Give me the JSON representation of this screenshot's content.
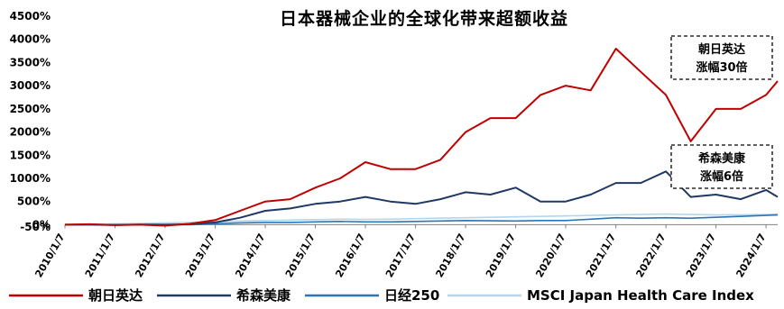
{
  "chart_data": {
    "type": "line",
    "title": "日本器械企业的全球化带来超额收益",
    "xlabel": "",
    "ylabel": "",
    "ylim": [
      -50,
      4500
    ],
    "y_ticks": [
      "-50%",
      "0%",
      "500%",
      "1000%",
      "1500%",
      "2000%",
      "2500%",
      "3000%",
      "3500%",
      "4000%",
      "4500%"
    ],
    "y_tick_values": [
      -50,
      0,
      500,
      1000,
      1500,
      2000,
      2500,
      3000,
      3500,
      4000,
      4500
    ],
    "x_ticks": [
      "2010/1/7",
      "2011/1/7",
      "2012/1/7",
      "2013/1/7",
      "2014/1/7",
      "2015/1/7",
      "2016/1/7",
      "2017/1/7",
      "2018/1/7",
      "2019/1/7",
      "2020/1/7",
      "2021/1/7",
      "2022/1/7",
      "2023/1/7",
      "2024/1/7"
    ],
    "x": [
      "2010/1/7",
      "2010/7/7",
      "2011/1/7",
      "2011/7/7",
      "2012/1/7",
      "2012/7/7",
      "2013/1/7",
      "2013/7/7",
      "2014/1/7",
      "2014/7/7",
      "2015/1/7",
      "2015/7/7",
      "2016/1/7",
      "2016/7/7",
      "2017/1/7",
      "2017/7/7",
      "2018/1/7",
      "2018/7/7",
      "2019/1/7",
      "2019/7/7",
      "2020/1/7",
      "2020/7/7",
      "2021/1/7",
      "2021/7/7",
      "2022/1/7",
      "2022/7/7",
      "2023/1/7",
      "2023/7/7",
      "2024/1/7",
      "2024/4/1"
    ],
    "series": [
      {
        "name": "朝日英达",
        "color": "#c00000",
        "values": [
          0,
          10,
          -10,
          0,
          -20,
          20,
          100,
          300,
          500,
          550,
          800,
          1000,
          1350,
          1200,
          1200,
          1400,
          2000,
          2300,
          2300,
          2800,
          3000,
          2900,
          3800,
          3300,
          2800,
          1800,
          2500,
          2500,
          2800,
          3100
        ]
      },
      {
        "name": "希森美康",
        "color": "#1f3864",
        "values": [
          0,
          0,
          -5,
          5,
          0,
          10,
          50,
          150,
          300,
          350,
          450,
          500,
          600,
          500,
          450,
          550,
          700,
          650,
          800,
          500,
          500,
          650,
          900,
          900,
          1150,
          600,
          650,
          550,
          750,
          600
        ]
      },
      {
        "name": "日经250",
        "color": "#2e75b6",
        "values": [
          0,
          0,
          0,
          0,
          0,
          0,
          20,
          40,
          50,
          50,
          60,
          70,
          60,
          60,
          70,
          80,
          90,
          85,
          80,
          90,
          90,
          120,
          150,
          140,
          150,
          140,
          160,
          180,
          200,
          210
        ]
      },
      {
        "name": "MSCI Japan Health Care Index",
        "color": "#b4d6ea",
        "values": [
          0,
          10,
          20,
          30,
          40,
          50,
          60,
          80,
          90,
          100,
          110,
          120,
          115,
          120,
          130,
          140,
          150,
          160,
          170,
          180,
          190,
          200,
          210,
          220,
          230,
          220,
          210,
          215,
          220,
          230
        ]
      }
    ],
    "annotations": [
      {
        "text_lines": [
          "朝日英达",
          "涨幅30倍"
        ],
        "series": "朝日英达"
      },
      {
        "text_lines": [
          "希森美康",
          "涨幅6倍"
        ],
        "series": "希森美康"
      }
    ],
    "legend": {
      "placement": "bottom"
    },
    "grid": false
  }
}
